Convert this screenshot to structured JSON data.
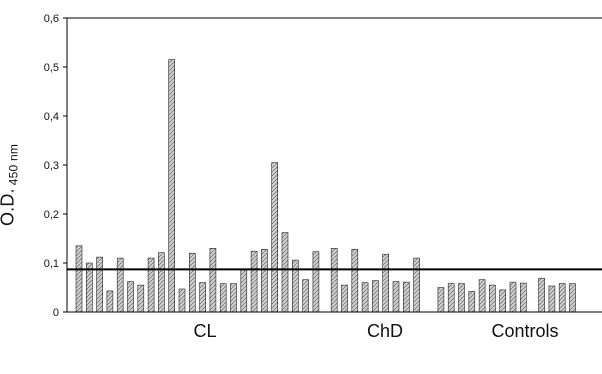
{
  "chart_data": {
    "type": "bar",
    "ylabel_main": "O.D.",
    "ylabel_sub": "450 nm",
    "ylim": [
      0,
      0.6
    ],
    "y_ticks": [
      "0",
      "0,1",
      "0,2",
      "0,3",
      "0,4",
      "0,5",
      "0,6"
    ],
    "groups": [
      "CL",
      "ChD",
      "Controls"
    ],
    "cutoff": 0.087,
    "grid": false,
    "series": [
      {
        "values": [
          0.135,
          0.1,
          0.112,
          0.043,
          0.11,
          0.062,
          0.055,
          0.11,
          0.121,
          0.515,
          0.047,
          0.12,
          0.06,
          0.13,
          0.058,
          0.058,
          0.087,
          0.124,
          0.128,
          0.305,
          0.162,
          0.106,
          0.066,
          0.123,
          0.13,
          0.055,
          0.128,
          0.06,
          0.064,
          0.118,
          0.062,
          0.061,
          0.11,
          0.05,
          0.058,
          0.058,
          0.042,
          0.066,
          0.055,
          0.045,
          0.061,
          0.059,
          0.069,
          0.053,
          0.058,
          0.058
        ]
      }
    ]
  }
}
